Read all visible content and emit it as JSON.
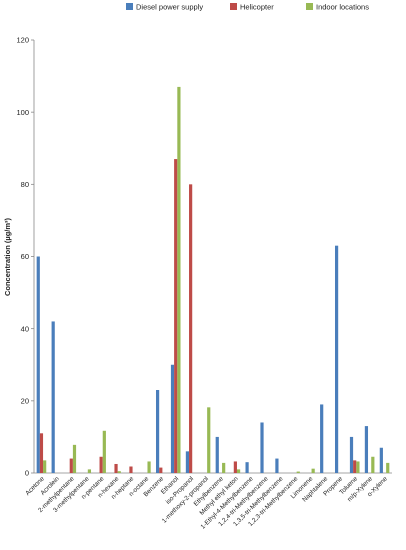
{
  "chart_data": {
    "type": "bar",
    "title": "",
    "xlabel": "",
    "ylabel": "Concentration (µg/m³)",
    "ylim": [
      0,
      120
    ],
    "yticks": [
      0,
      20,
      40,
      60,
      80,
      100,
      120
    ],
    "grid": false,
    "legend_position": "top-right",
    "categories": [
      "Acetone",
      "Acrolein",
      "2-methylpentane",
      "3-methylpentane",
      "n-pentane",
      "n-hexane",
      "n-heptane",
      "n-octane",
      "Benzene",
      "Ethanol",
      "iso-Propanol",
      "1-methoxy-2-propanol",
      "Ethylbenzene",
      "Methyl ethyl keton",
      "1-Ethyl-4-Methylbenzene",
      "1,2,4-tri-Methylbenzene",
      "1,3,5-tri-Methylbenzene",
      "1,2,3-tri-Methylbenzene",
      "Limonene",
      "Naphtalene",
      "Propene",
      "Toluene",
      "m/p-Xylene",
      "o-Xylene"
    ],
    "series": [
      {
        "name": "Diesel power supply",
        "color": "#4a7ebb",
        "values": [
          60,
          42,
          0,
          0,
          0,
          0,
          0,
          0,
          23,
          30,
          6,
          0,
          10,
          0,
          3,
          14,
          4,
          0,
          0,
          19,
          63,
          10,
          13,
          7
        ]
      },
      {
        "name": "Helicopter",
        "color": "#be4b48",
        "values": [
          11,
          0,
          4,
          0,
          4.5,
          2.5,
          1.8,
          0,
          1.5,
          87,
          80,
          0,
          0,
          3.2,
          0,
          0,
          0,
          0,
          0,
          0,
          0,
          3.5,
          0,
          0
        ]
      },
      {
        "name": "Indoor locations",
        "color": "#98b954",
        "values": [
          3.5,
          0,
          7.8,
          1,
          11.7,
          0.5,
          0,
          3.2,
          0,
          107,
          0,
          18.2,
          2.8,
          1,
          0,
          0,
          0,
          0.4,
          1.2,
          0,
          0,
          3.2,
          4.5,
          2.8
        ]
      }
    ]
  }
}
